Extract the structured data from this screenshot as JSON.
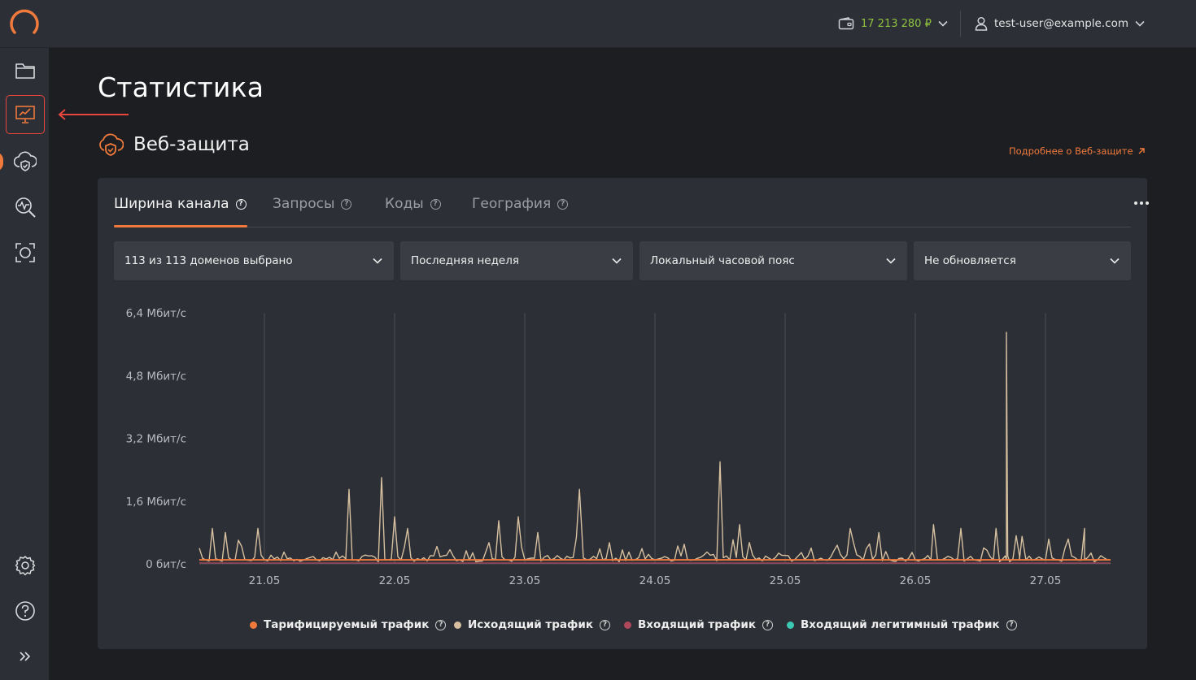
{
  "header": {
    "balance": "17 213 280 ₽",
    "user_email": "test-user@example.com"
  },
  "sidebar": {
    "items": [
      "folder-icon",
      "statistics-icon",
      "cloud-shield-icon",
      "monitoring-icon",
      "scan-icon",
      "settings-icon",
      "help-icon",
      "expand-icon"
    ],
    "active": "statistics-icon"
  },
  "page": {
    "title": "Статистика",
    "section_title": "Веб-защита",
    "more_link": "Подробнее о Веб-защите"
  },
  "tabs": [
    {
      "label": "Ширина канала"
    },
    {
      "label": "Запросы"
    },
    {
      "label": "Коды"
    },
    {
      "label": "География"
    }
  ],
  "filters": {
    "domains": "113 из 113 доменов выбрано",
    "period": "Последняя неделя",
    "timezone": "Локальный часовой пояс",
    "refresh": "Не обновляется"
  },
  "colors": {
    "accent": "#f07a3c",
    "billable": "#f07a3c",
    "outgoing": "#d6c0a0",
    "incoming": "#b0485c",
    "legit": "#3cc9b4",
    "balance": "#8fc23f"
  },
  "chart_data": {
    "type": "line",
    "y_ticks": [
      "6,4 Мбит/с",
      "4,8 Мбит/с",
      "3,2 Мбит/с",
      "1,6 Мбит/с",
      "0 бит/с"
    ],
    "ylim": [
      0,
      6.4
    ],
    "y_unit": "Мбит/с",
    "x_ticks": [
      "21.05",
      "22.05",
      "23.05",
      "24.05",
      "25.05",
      "26.05",
      "27.05"
    ],
    "xlim": [
      20.5,
      27.5
    ],
    "grid": "vertical",
    "legend_position": "bottom",
    "series": [
      {
        "name": "Тарифицируемый трафик",
        "color": "#f07a3c",
        "values": [
          [
            20.5,
            0.1
          ],
          [
            27.5,
            0.1
          ]
        ]
      },
      {
        "name": "Исходящий трафик",
        "color": "#d6c0a0",
        "values": [
          [
            20.5,
            0.4
          ],
          [
            20.55,
            0.1
          ],
          [
            20.6,
            0.9
          ],
          [
            20.65,
            0.1
          ],
          [
            20.7,
            0.8
          ],
          [
            20.75,
            0.1
          ],
          [
            20.8,
            0.6
          ],
          [
            20.85,
            0.1
          ],
          [
            20.95,
            0.9
          ],
          [
            21.0,
            0.1
          ],
          [
            21.15,
            0.3
          ],
          [
            21.4,
            0.1
          ],
          [
            21.55,
            0.3
          ],
          [
            21.65,
            1.9
          ],
          [
            21.7,
            0.1
          ],
          [
            21.8,
            0.2
          ],
          [
            21.9,
            2.2
          ],
          [
            21.95,
            0.1
          ],
          [
            22.0,
            1.2
          ],
          [
            22.05,
            0.1
          ],
          [
            22.1,
            0.9
          ],
          [
            22.2,
            0.1
          ],
          [
            22.3,
            0.2
          ],
          [
            22.5,
            0.1
          ],
          [
            22.7,
            0.3
          ],
          [
            22.8,
            1.1
          ],
          [
            22.85,
            0.1
          ],
          [
            22.95,
            1.2
          ],
          [
            23.0,
            0.1
          ],
          [
            23.1,
            0.8
          ],
          [
            23.2,
            0.1
          ],
          [
            23.3,
            0.1
          ],
          [
            23.42,
            1.9
          ],
          [
            23.48,
            0.1
          ],
          [
            23.6,
            0.1
          ],
          [
            23.8,
            0.3
          ],
          [
            24.0,
            0.1
          ],
          [
            24.2,
            0.2
          ],
          [
            24.3,
            0.1
          ],
          [
            24.4,
            0.3
          ],
          [
            24.5,
            2.6
          ],
          [
            24.55,
            0.2
          ],
          [
            24.65,
            1.0
          ],
          [
            24.7,
            0.1
          ],
          [
            24.9,
            0.1
          ],
          [
            25.1,
            0.2
          ],
          [
            25.3,
            0.1
          ],
          [
            25.5,
            0.9
          ],
          [
            25.6,
            0.1
          ],
          [
            25.72,
            0.8
          ],
          [
            25.8,
            0.1
          ],
          [
            26.0,
            0.1
          ],
          [
            26.2,
            0.1
          ],
          [
            26.35,
            0.9
          ],
          [
            26.45,
            0.1
          ],
          [
            26.6,
            0.1
          ],
          [
            26.8,
            0.2
          ],
          [
            27.1,
            0.1
          ],
          [
            27.3,
            0.9
          ],
          [
            27.4,
            0.1
          ],
          [
            27.5,
            0.1
          ],
          [
            26.12,
            0.1
          ],
          [
            26.14,
            1.0
          ],
          [
            26.3,
            0.1
          ],
          [
            26.6,
            0.1
          ],
          [
            26.62,
            0.9
          ],
          [
            26.7,
            0.1
          ],
          [
            26.8,
            0.1
          ],
          [
            26.82,
            0.7
          ],
          [
            26.85,
            0.1
          ],
          [
            27.0,
            0.1
          ],
          [
            27.1,
            0.1
          ],
          [
            27.2,
            0.2
          ],
          [
            27.3,
            0.1
          ]
        ]
      },
      {
        "name": "Входящий трафик",
        "color": "#b0485c",
        "values": [
          [
            20.5,
            0.02
          ],
          [
            27.5,
            0.02
          ]
        ]
      },
      {
        "name": "Входящий легитимный трафик",
        "color": "#3cc9b4",
        "values": [
          [
            20.5,
            0.0
          ],
          [
            27.5,
            0.0
          ]
        ]
      }
    ]
  }
}
